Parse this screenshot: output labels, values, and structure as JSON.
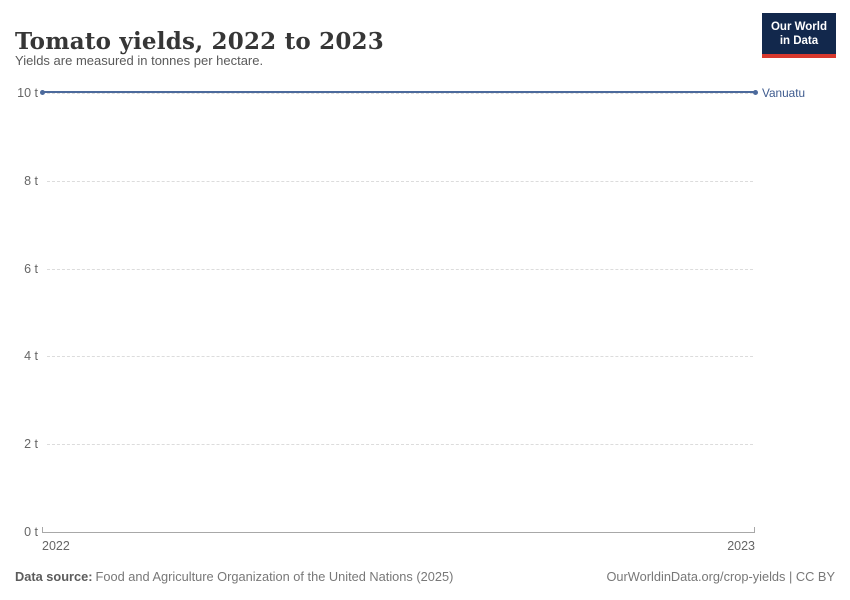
{
  "header": {
    "title": "Tomato yields, 2022 to 2023",
    "subtitle": "Yields are measured in tonnes per hectare.",
    "logo": {
      "line1": "Our World",
      "line2": "in Data",
      "bg_color": "#12284C",
      "accent_color": "#D7382D"
    }
  },
  "chart_data": {
    "type": "line",
    "title": "Tomato yields, 2022 to 2023",
    "subtitle": "Yields are measured in tonnes per hectare.",
    "x": [
      2022,
      2023
    ],
    "xtick_labels": [
      "2022",
      "2023"
    ],
    "series": [
      {
        "name": "Vanuatu",
        "values": [
          10,
          10
        ],
        "color": "#4C6A9C",
        "label_color": "#3D5A8E"
      }
    ],
    "ylabel": "",
    "xlabel": "",
    "unit": "t",
    "ylim": [
      0,
      10
    ],
    "yticks": [
      0,
      2,
      4,
      6,
      8,
      10
    ],
    "ytick_labels": [
      "0 t",
      "2 t",
      "4 t",
      "6 t",
      "8 t",
      "10 t"
    ],
    "grid": "horizontal-dashed",
    "legend_position": "right-of-line-end",
    "gridline_color": "#dcdcdc",
    "axis_color": "#a8a8a8",
    "tick_label_color": "#666666"
  },
  "footer": {
    "source_label": "Data source:",
    "source_text": "Food and Agriculture Organization of the United Nations (2025)",
    "credit": "OurWorldinData.org/crop-yields | CC BY"
  }
}
